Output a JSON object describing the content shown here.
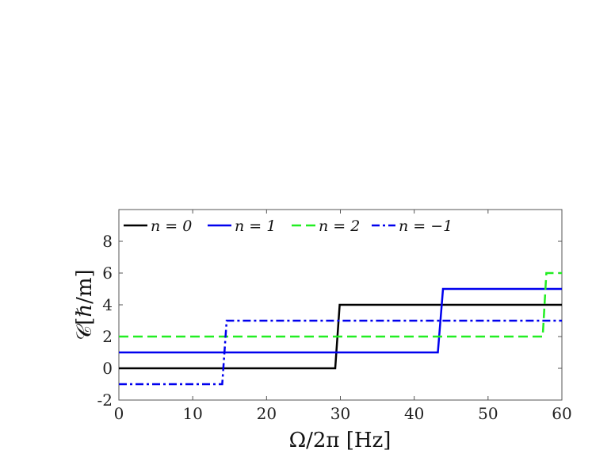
{
  "chart_data": {
    "type": "line",
    "xlabel": "Ω/2π [Hz]",
    "ylabel": "𝒞[ℏ/m]",
    "xlim": [
      0,
      60
    ],
    "ylim": [
      -2,
      10
    ],
    "xticks": [
      "0",
      "10",
      "20",
      "30",
      "40",
      "50",
      "60"
    ],
    "yticks": [
      "-2",
      "0",
      "2",
      "4",
      "6",
      "8"
    ],
    "grid": false,
    "legend_position": "top, horizontal",
    "series": [
      {
        "name": "n = 0",
        "color": "#000000",
        "style": "solid",
        "x": [
          0,
          29.3,
          29.9,
          60
        ],
        "y": [
          0,
          0,
          4,
          4
        ]
      },
      {
        "name": "n = 1",
        "color": "#0000ee",
        "style": "solid",
        "x": [
          0,
          43.2,
          43.9,
          60
        ],
        "y": [
          1,
          1,
          5,
          5
        ]
      },
      {
        "name": "n = 2",
        "color": "#22ee22",
        "style": "dashed",
        "x": [
          0,
          57.4,
          57.9,
          60
        ],
        "y": [
          2,
          2,
          6,
          6
        ]
      },
      {
        "name": "n = −1",
        "color": "#0000ee",
        "style": "dashdot",
        "x": [
          0,
          14.0,
          14.6,
          60
        ],
        "y": [
          -1,
          -1,
          3,
          3
        ]
      }
    ]
  }
}
